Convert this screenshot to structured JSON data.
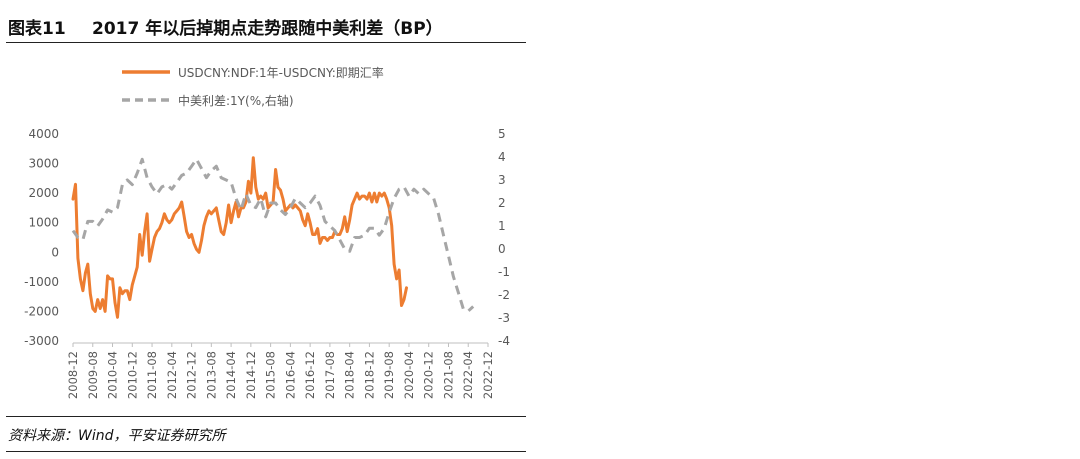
{
  "header": {
    "number": "图表11",
    "title": "2017 年以后掉期点走势跟随中美利差（BP）"
  },
  "footer": {
    "source": "资料来源：Wind，平安证券研究所"
  },
  "colors": {
    "series1": "#ED7D31",
    "series2": "#A6A6A6",
    "text": "#595959"
  },
  "chart_data": {
    "type": "line",
    "x_tick_labels": [
      "2008-12",
      "2009-08",
      "2010-04",
      "2010-12",
      "2011-08",
      "2012-04",
      "2012-12",
      "2013-08",
      "2014-04",
      "2014-12",
      "2015-08",
      "2016-04",
      "2016-12",
      "2017-08",
      "2018-04",
      "2018-12",
      "2019-08",
      "2020-04",
      "2020-12",
      "2021-08",
      "2022-04",
      "2022-12"
    ],
    "y_left": {
      "min": -3000,
      "max": 4000,
      "ticks": [
        4000,
        3000,
        2000,
        1000,
        0,
        -1000,
        -2000,
        -3000
      ]
    },
    "y_right": {
      "min": -4,
      "max": 5,
      "ticks": [
        5,
        4,
        3,
        2,
        1,
        0,
        -1,
        -2,
        -3,
        -4
      ]
    },
    "legend_placement": "top-center",
    "series": [
      {
        "name": "USDCNY:NDF:1年-USDCNY:即期汇率",
        "axis": "left",
        "style": "solid",
        "color": "#ED7D31",
        "points": [
          [
            "2008-12",
            1800
          ],
          [
            "2009-01",
            2300
          ],
          [
            "2009-02",
            -200
          ],
          [
            "2009-03",
            -900
          ],
          [
            "2009-04",
            -1300
          ],
          [
            "2009-05",
            -700
          ],
          [
            "2009-06",
            -400
          ],
          [
            "2009-07",
            -1400
          ],
          [
            "2009-08",
            -1900
          ],
          [
            "2009-09",
            -2000
          ],
          [
            "2009-10",
            -1600
          ],
          [
            "2009-11",
            -1900
          ],
          [
            "2009-12",
            -1600
          ],
          [
            "2010-01",
            -2000
          ],
          [
            "2010-02",
            -800
          ],
          [
            "2010-03",
            -900
          ],
          [
            "2010-04",
            -900
          ],
          [
            "2010-05",
            -1700
          ],
          [
            "2010-06",
            -2200
          ],
          [
            "2010-07",
            -1200
          ],
          [
            "2010-08",
            -1400
          ],
          [
            "2010-09",
            -1300
          ],
          [
            "2010-10",
            -1300
          ],
          [
            "2010-11",
            -1600
          ],
          [
            "2010-12",
            -1100
          ],
          [
            "2011-01",
            -800
          ],
          [
            "2011-02",
            -500
          ],
          [
            "2011-03",
            600
          ],
          [
            "2011-04",
            -100
          ],
          [
            "2011-05",
            700
          ],
          [
            "2011-06",
            1300
          ],
          [
            "2011-07",
            -300
          ],
          [
            "2011-08",
            100
          ],
          [
            "2011-09",
            500
          ],
          [
            "2011-10",
            700
          ],
          [
            "2011-11",
            800
          ],
          [
            "2011-12",
            1000
          ],
          [
            "2012-01",
            1300
          ],
          [
            "2012-02",
            1100
          ],
          [
            "2012-03",
            1000
          ],
          [
            "2012-04",
            1100
          ],
          [
            "2012-05",
            1300
          ],
          [
            "2012-06",
            1400
          ],
          [
            "2012-07",
            1500
          ],
          [
            "2012-08",
            1700
          ],
          [
            "2012-09",
            1200
          ],
          [
            "2012-10",
            700
          ],
          [
            "2012-11",
            500
          ],
          [
            "2012-12",
            600
          ],
          [
            "2013-01",
            300
          ],
          [
            "2013-02",
            100
          ],
          [
            "2013-03",
            0
          ],
          [
            "2013-04",
            400
          ],
          [
            "2013-05",
            900
          ],
          [
            "2013-06",
            1200
          ],
          [
            "2013-07",
            1400
          ],
          [
            "2013-08",
            1300
          ],
          [
            "2013-09",
            1400
          ],
          [
            "2013-10",
            1500
          ],
          [
            "2013-11",
            1100
          ],
          [
            "2013-12",
            700
          ],
          [
            "2014-01",
            600
          ],
          [
            "2014-02",
            1000
          ],
          [
            "2014-03",
            1600
          ],
          [
            "2014-04",
            1000
          ],
          [
            "2014-05",
            1400
          ],
          [
            "2014-06",
            1700
          ],
          [
            "2014-07",
            1200
          ],
          [
            "2014-08",
            1500
          ],
          [
            "2014-09",
            1500
          ],
          [
            "2014-10",
            1700
          ],
          [
            "2014-11",
            2400
          ],
          [
            "2014-12",
            2000
          ],
          [
            "2015-01",
            3200
          ],
          [
            "2015-02",
            2200
          ],
          [
            "2015-03",
            1800
          ],
          [
            "2015-04",
            1900
          ],
          [
            "2015-05",
            1800
          ],
          [
            "2015-06",
            2000
          ],
          [
            "2015-07",
            1500
          ],
          [
            "2015-08",
            1600
          ],
          [
            "2015-09",
            1700
          ],
          [
            "2015-10",
            2800
          ],
          [
            "2015-11",
            2200
          ],
          [
            "2015-12",
            2100
          ],
          [
            "2016-01",
            1800
          ],
          [
            "2016-02",
            1400
          ],
          [
            "2016-03",
            1500
          ],
          [
            "2016-04",
            1600
          ],
          [
            "2016-05",
            1500
          ],
          [
            "2016-06",
            1600
          ],
          [
            "2016-07",
            1500
          ],
          [
            "2016-08",
            1400
          ],
          [
            "2016-09",
            1100
          ],
          [
            "2016-10",
            900
          ],
          [
            "2016-11",
            1300
          ],
          [
            "2016-12",
            1000
          ],
          [
            "2017-01",
            600
          ],
          [
            "2017-02",
            600
          ],
          [
            "2017-03",
            800
          ],
          [
            "2017-04",
            300
          ],
          [
            "2017-05",
            500
          ],
          [
            "2017-06",
            500
          ],
          [
            "2017-07",
            400
          ],
          [
            "2017-08",
            500
          ],
          [
            "2017-09",
            500
          ],
          [
            "2017-10",
            700
          ],
          [
            "2017-11",
            600
          ],
          [
            "2017-12",
            600
          ],
          [
            "2018-01",
            800
          ],
          [
            "2018-02",
            1200
          ],
          [
            "2018-03",
            700
          ],
          [
            "2018-04",
            1100
          ],
          [
            "2018-05",
            1600
          ],
          [
            "2018-06",
            1800
          ],
          [
            "2018-07",
            2000
          ],
          [
            "2018-08",
            1800
          ],
          [
            "2018-09",
            1900
          ],
          [
            "2018-10",
            1900
          ],
          [
            "2018-11",
            1800
          ],
          [
            "2018-12",
            2000
          ],
          [
            "2019-01",
            1700
          ],
          [
            "2019-02",
            2000
          ],
          [
            "2019-03",
            1700
          ],
          [
            "2019-04",
            2000
          ],
          [
            "2019-05",
            1900
          ],
          [
            "2019-06",
            2000
          ],
          [
            "2019-07",
            1800
          ],
          [
            "2019-08",
            1500
          ],
          [
            "2019-09",
            900
          ],
          [
            "2019-10",
            -400
          ],
          [
            "2019-11",
            -900
          ],
          [
            "2019-12",
            -600
          ],
          [
            "2020-01",
            -1800
          ],
          [
            "2020-02",
            -1600
          ],
          [
            "2020-03",
            -1200
          ]
        ]
      },
      {
        "name": "中美利差:1Y(%,右轴)",
        "axis": "right",
        "style": "dashed",
        "color": "#A6A6A6",
        "points": [
          [
            "2008-12",
            0.8
          ],
          [
            "2009-02",
            0.5
          ],
          [
            "2009-04",
            0.4
          ],
          [
            "2009-06",
            1.2
          ],
          [
            "2009-08",
            1.2
          ],
          [
            "2009-10",
            1.0
          ],
          [
            "2009-12",
            1.3
          ],
          [
            "2010-02",
            1.7
          ],
          [
            "2010-04",
            1.6
          ],
          [
            "2010-06",
            1.8
          ],
          [
            "2010-08",
            2.8
          ],
          [
            "2010-10",
            3.0
          ],
          [
            "2010-12",
            2.8
          ],
          [
            "2011-02",
            3.3
          ],
          [
            "2011-04",
            3.9
          ],
          [
            "2011-06",
            3.1
          ],
          [
            "2011-08",
            2.7
          ],
          [
            "2011-10",
            2.4
          ],
          [
            "2011-12",
            2.7
          ],
          [
            "2012-02",
            2.8
          ],
          [
            "2012-04",
            2.6
          ],
          [
            "2012-06",
            2.9
          ],
          [
            "2012-08",
            3.2
          ],
          [
            "2012-10",
            3.3
          ],
          [
            "2012-12",
            3.6
          ],
          [
            "2013-02",
            3.9
          ],
          [
            "2013-04",
            3.5
          ],
          [
            "2013-06",
            3.1
          ],
          [
            "2013-08",
            3.4
          ],
          [
            "2013-10",
            3.6
          ],
          [
            "2013-12",
            3.1
          ],
          [
            "2014-02",
            3.0
          ],
          [
            "2014-04",
            2.9
          ],
          [
            "2014-06",
            2.2
          ],
          [
            "2014-08",
            1.7
          ],
          [
            "2014-10",
            2.4
          ],
          [
            "2014-12",
            1.9
          ],
          [
            "2015-02",
            1.8
          ],
          [
            "2015-04",
            2.2
          ],
          [
            "2015-06",
            1.4
          ],
          [
            "2015-08",
            2.0
          ],
          [
            "2015-10",
            2.0
          ],
          [
            "2015-12",
            1.7
          ],
          [
            "2016-02",
            1.5
          ],
          [
            "2016-04",
            1.8
          ],
          [
            "2016-06",
            2.2
          ],
          [
            "2016-08",
            2.0
          ],
          [
            "2016-10",
            1.8
          ],
          [
            "2016-12",
            2.0
          ],
          [
            "2017-02",
            2.3
          ],
          [
            "2017-04",
            1.9
          ],
          [
            "2017-06",
            1.2
          ],
          [
            "2017-08",
            1.0
          ],
          [
            "2017-10",
            0.8
          ],
          [
            "2017-12",
            0.4
          ],
          [
            "2018-02",
            0.0
          ],
          [
            "2018-04",
            -0.1
          ],
          [
            "2018-06",
            0.5
          ],
          [
            "2018-08",
            0.5
          ],
          [
            "2018-10",
            0.6
          ],
          [
            "2018-12",
            0.9
          ],
          [
            "2019-02",
            0.9
          ],
          [
            "2019-04",
            0.6
          ],
          [
            "2019-06",
            0.9
          ],
          [
            "2019-08",
            1.6
          ],
          [
            "2019-10",
            2.2
          ],
          [
            "2019-12",
            2.6
          ],
          [
            "2020-02",
            2.7
          ],
          [
            "2020-04",
            2.3
          ],
          [
            "2020-06",
            2.6
          ],
          [
            "2020-08",
            2.4
          ],
          [
            "2020-10",
            2.6
          ],
          [
            "2020-12",
            2.4
          ],
          [
            "2021-02",
            2.2
          ],
          [
            "2021-04",
            1.5
          ],
          [
            "2021-06",
            0.6
          ],
          [
            "2021-08",
            -0.3
          ],
          [
            "2021-10",
            -1.2
          ],
          [
            "2021-12",
            -1.9
          ],
          [
            "2022-02",
            -2.6
          ],
          [
            "2022-04",
            -2.7
          ],
          [
            "2022-06",
            -2.5
          ]
        ]
      }
    ]
  }
}
